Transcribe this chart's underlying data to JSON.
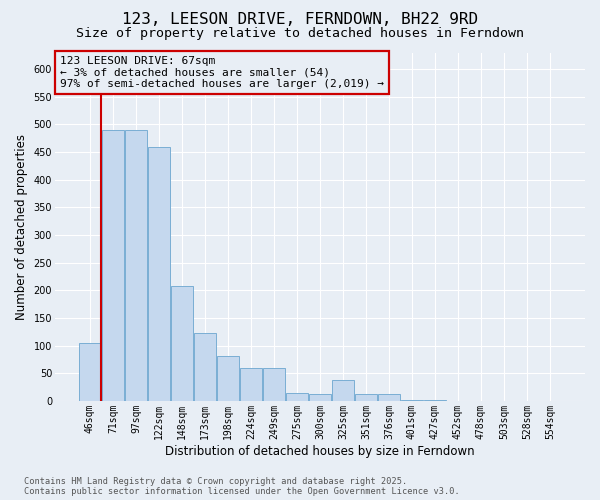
{
  "title": "123, LEESON DRIVE, FERNDOWN, BH22 9RD",
  "subtitle": "Size of property relative to detached houses in Ferndown",
  "xlabel": "Distribution of detached houses by size in Ferndown",
  "ylabel": "Number of detached properties",
  "categories": [
    "46sqm",
    "71sqm",
    "97sqm",
    "122sqm",
    "148sqm",
    "173sqm",
    "198sqm",
    "224sqm",
    "249sqm",
    "275sqm",
    "300sqm",
    "325sqm",
    "351sqm",
    "376sqm",
    "401sqm",
    "427sqm",
    "452sqm",
    "478sqm",
    "503sqm",
    "528sqm",
    "554sqm"
  ],
  "values": [
    105,
    490,
    490,
    460,
    207,
    122,
    82,
    60,
    60,
    15,
    12,
    38,
    12,
    12,
    2,
    2,
    0,
    0,
    0,
    0,
    0
  ],
  "bar_color": "#c5d8ee",
  "bar_edge_color": "#7aaed4",
  "bar_linewidth": 0.7,
  "vline_color": "#cc0000",
  "vline_x": 0.5,
  "annotation_title": "123 LEESON DRIVE: 67sqm",
  "annotation_line1": "← 3% of detached houses are smaller (54)",
  "annotation_line2": "97% of semi-detached houses are larger (2,019) →",
  "annotation_box_edgecolor": "#cc0000",
  "ylim_min": 0,
  "ylim_max": 630,
  "yticks": [
    0,
    50,
    100,
    150,
    200,
    250,
    300,
    350,
    400,
    450,
    500,
    550,
    600
  ],
  "background_color": "#e8eef5",
  "grid_color": "#ffffff",
  "footer_line1": "Contains HM Land Registry data © Crown copyright and database right 2025.",
  "footer_line2": "Contains public sector information licensed under the Open Government Licence v3.0.",
  "title_fontsize": 11.5,
  "subtitle_fontsize": 9.5,
  "ylabel_fontsize": 8.5,
  "xlabel_fontsize": 8.5,
  "tick_fontsize": 7,
  "annotation_fontsize": 8,
  "footer_fontsize": 6.2
}
